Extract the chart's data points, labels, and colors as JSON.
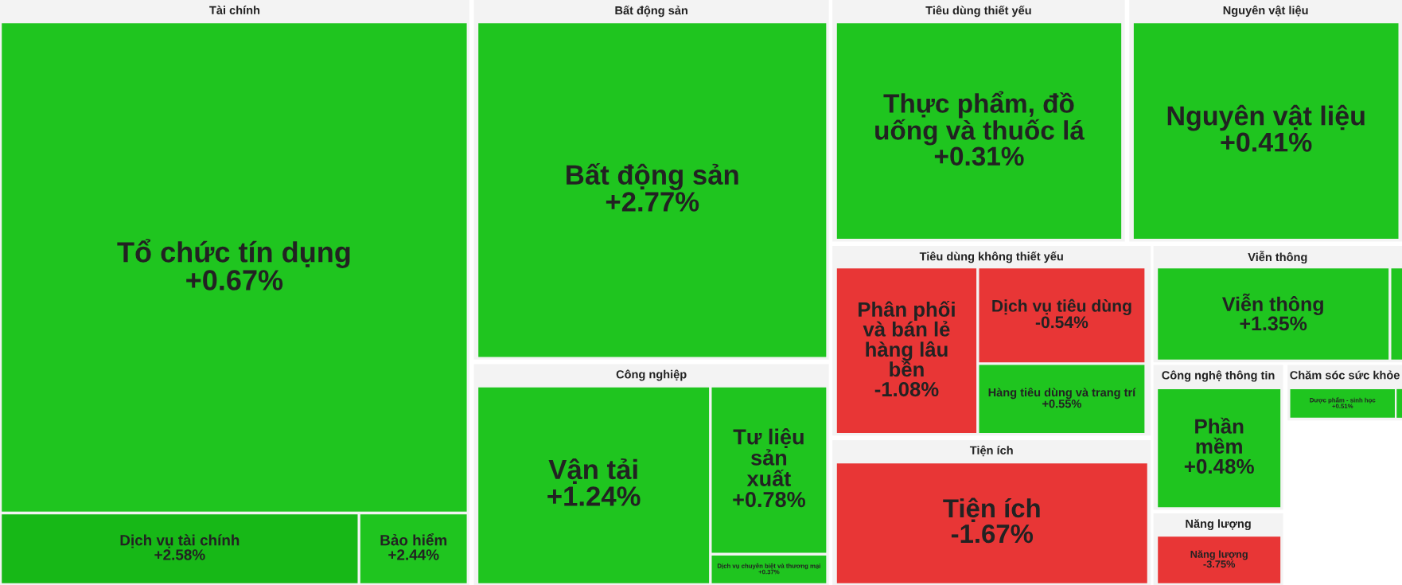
{
  "chart_data": {
    "type": "other",
    "categories": [
      "Tổ chức tín dụng",
      "Dịch vụ tài chính",
      "Bảo hiểm",
      "Bất động sản",
      "Vận tải",
      "Tư liệu sản xuất",
      "Dịch vụ chuyên biệt và thương mại",
      "Thực phẩm, đồ uống và thuốc lá",
      "Nguyên vật liệu",
      "Phân phối và bán lẻ hàng lâu bền",
      "Dịch vụ tiêu dùng",
      "Hàng tiêu dùng và trang trí",
      "Viễn thông",
      null,
      "Tiện ích",
      "Phần mềm",
      "Dược phẩm - sinh học",
      null,
      "Năng lượng"
    ],
    "series": [
      {
        "name": "Tài chính",
        "values": [
          0.67,
          2.58,
          2.44,
          null,
          null,
          null,
          null,
          null,
          null,
          null,
          null,
          null,
          null,
          null,
          null,
          null,
          null,
          null,
          null
        ],
        "value_labels": [
          "+0.67%",
          "+2.58%",
          "+2.44%",
          null,
          null,
          null,
          null,
          null,
          null,
          null,
          null,
          null,
          null,
          null,
          null,
          null,
          null,
          null,
          null
        ],
        "colors": [
          "#1fc51f",
          "#17b817",
          "#1fc51f",
          null,
          null,
          null,
          null,
          null,
          null,
          null,
          null,
          null,
          null,
          null,
          null,
          null,
          null,
          null,
          null
        ]
      },
      {
        "name": "Bất động sản",
        "values": [
          null,
          null,
          null,
          2.77,
          null,
          null,
          null,
          null,
          null,
          null,
          null,
          null,
          null,
          null,
          null,
          null,
          null,
          null,
          null
        ],
        "value_labels": [
          null,
          null,
          null,
          "+2.77%",
          null,
          null,
          null,
          null,
          null,
          null,
          null,
          null,
          null,
          null,
          null,
          null,
          null,
          null,
          null
        ],
        "colors": [
          null,
          null,
          null,
          "#1fc51f",
          null,
          null,
          null,
          null,
          null,
          null,
          null,
          null,
          null,
          null,
          null,
          null,
          null,
          null,
          null
        ]
      },
      {
        "name": "Công nghiệp",
        "values": [
          null,
          null,
          null,
          null,
          1.24,
          0.78,
          0.37,
          null,
          null,
          null,
          null,
          null,
          null,
          null,
          null,
          null,
          null,
          null,
          null
        ],
        "value_labels": [
          null,
          null,
          null,
          null,
          "+1.24%",
          "+0.78%",
          "+0.37%",
          null,
          null,
          null,
          null,
          null,
          null,
          null,
          null,
          null,
          null,
          null,
          null
        ],
        "colors": [
          null,
          null,
          null,
          null,
          "#1fc51f",
          "#1fc51f",
          "#1fc51f",
          null,
          null,
          null,
          null,
          null,
          null,
          null,
          null,
          null,
          null,
          null,
          null
        ]
      },
      {
        "name": "Tiêu dùng thiết yếu",
        "values": [
          null,
          null,
          null,
          null,
          null,
          null,
          null,
          0.31,
          null,
          null,
          null,
          null,
          null,
          null,
          null,
          null,
          null,
          null,
          null
        ],
        "value_labels": [
          null,
          null,
          null,
          null,
          null,
          null,
          null,
          "+0.31%",
          null,
          null,
          null,
          null,
          null,
          null,
          null,
          null,
          null,
          null,
          null
        ],
        "colors": [
          null,
          null,
          null,
          null,
          null,
          null,
          null,
          "#1fc51f",
          null,
          null,
          null,
          null,
          null,
          null,
          null,
          null,
          null,
          null,
          null
        ]
      },
      {
        "name": "Nguyên vật liệu",
        "values": [
          null,
          null,
          null,
          null,
          null,
          null,
          null,
          null,
          0.41,
          null,
          null,
          null,
          null,
          null,
          null,
          null,
          null,
          null,
          null
        ],
        "value_labels": [
          null,
          null,
          null,
          null,
          null,
          null,
          null,
          null,
          "+0.41%",
          null,
          null,
          null,
          null,
          null,
          null,
          null,
          null,
          null,
          null
        ],
        "colors": [
          null,
          null,
          null,
          null,
          null,
          null,
          null,
          null,
          "#1fc51f",
          null,
          null,
          null,
          null,
          null,
          null,
          null,
          null,
          null,
          null
        ]
      },
      {
        "name": "Tiêu dùng không thiết yếu",
        "values": [
          null,
          null,
          null,
          null,
          null,
          null,
          null,
          null,
          null,
          -1.08,
          -0.54,
          0.55,
          null,
          null,
          null,
          null,
          null,
          null,
          null
        ],
        "value_labels": [
          null,
          null,
          null,
          null,
          null,
          null,
          null,
          null,
          null,
          "-1.08%",
          "-0.54%",
          "+0.55%",
          null,
          null,
          null,
          null,
          null,
          null,
          null
        ],
        "colors": [
          null,
          null,
          null,
          null,
          null,
          null,
          null,
          null,
          null,
          "#e83636",
          "#e83636",
          "#1fc51f",
          null,
          null,
          null,
          null,
          null,
          null,
          null
        ]
      },
      {
        "name": "Viễn thông",
        "values": [
          null,
          null,
          null,
          null,
          null,
          null,
          null,
          null,
          null,
          null,
          null,
          null,
          1.35,
          null,
          null,
          null,
          null,
          null,
          null
        ],
        "value_labels": [
          null,
          null,
          null,
          null,
          null,
          null,
          null,
          null,
          null,
          null,
          null,
          null,
          "+1.35%",
          null,
          null,
          null,
          null,
          null,
          null
        ],
        "colors": [
          null,
          null,
          null,
          null,
          null,
          null,
          null,
          null,
          null,
          null,
          null,
          null,
          "#1fc51f",
          "#1fc51f",
          null,
          null,
          null,
          null,
          null
        ]
      },
      {
        "name": "Tiện ích",
        "values": [
          null,
          null,
          null,
          null,
          null,
          null,
          null,
          null,
          null,
          null,
          null,
          null,
          null,
          null,
          -1.67,
          null,
          null,
          null,
          null
        ],
        "value_labels": [
          null,
          null,
          null,
          null,
          null,
          null,
          null,
          null,
          null,
          null,
          null,
          null,
          null,
          null,
          "-1.67%",
          null,
          null,
          null,
          null
        ],
        "colors": [
          null,
          null,
          null,
          null,
          null,
          null,
          null,
          null,
          null,
          null,
          null,
          null,
          null,
          null,
          "#e83636",
          null,
          null,
          null,
          null
        ]
      },
      {
        "name": "Công nghệ thông tin",
        "values": [
          null,
          null,
          null,
          null,
          null,
          null,
          null,
          null,
          null,
          null,
          null,
          null,
          null,
          null,
          null,
          0.48,
          null,
          null,
          null
        ],
        "value_labels": [
          null,
          null,
          null,
          null,
          null,
          null,
          null,
          null,
          null,
          null,
          null,
          null,
          null,
          null,
          null,
          "+0.48%",
          null,
          null,
          null
        ],
        "colors": [
          null,
          null,
          null,
          null,
          null,
          null,
          null,
          null,
          null,
          null,
          null,
          null,
          null,
          null,
          null,
          "#1fc51f",
          null,
          null,
          null
        ]
      },
      {
        "name": "Chăm sóc sức khỏe",
        "values": [
          null,
          null,
          null,
          null,
          null,
          null,
          null,
          null,
          null,
          null,
          null,
          null,
          null,
          null,
          null,
          null,
          0.51,
          null,
          null
        ],
        "value_labels": [
          null,
          null,
          null,
          null,
          null,
          null,
          null,
          null,
          null,
          null,
          null,
          null,
          null,
          null,
          null,
          null,
          "+0.51%",
          null,
          null
        ],
        "colors": [
          null,
          null,
          null,
          null,
          null,
          null,
          null,
          null,
          null,
          null,
          null,
          null,
          null,
          null,
          null,
          null,
          "#1fc51f",
          "#1fc51f",
          null
        ]
      },
      {
        "name": "Năng lượng",
        "values": [
          null,
          null,
          null,
          null,
          null,
          null,
          null,
          null,
          null,
          null,
          null,
          null,
          null,
          null,
          null,
          null,
          null,
          null,
          -3.75
        ],
        "value_labels": [
          null,
          null,
          null,
          null,
          null,
          null,
          null,
          null,
          null,
          null,
          null,
          null,
          null,
          null,
          null,
          null,
          null,
          null,
          "-3.75%"
        ],
        "colors": [
          null,
          null,
          null,
          null,
          null,
          null,
          null,
          null,
          null,
          null,
          null,
          null,
          null,
          null,
          null,
          null,
          null,
          null,
          "#e83636"
        ]
      }
    ]
  }
}
